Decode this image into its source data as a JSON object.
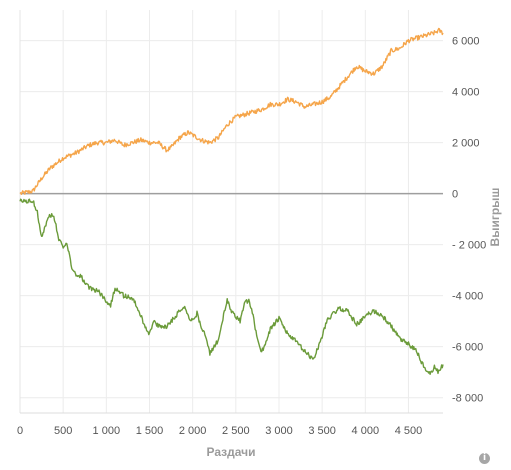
{
  "chart_data": {
    "type": "line",
    "xlabel": "Раздачи",
    "ylabel": "Выигрыш",
    "xlim": [
      0,
      4900
    ],
    "ylim": [
      -8600,
      7200
    ],
    "xticks": [
      0,
      500,
      1000,
      1500,
      2000,
      2500,
      3000,
      3500,
      4000,
      4500
    ],
    "xtick_labels": [
      "0",
      "500",
      "1 000",
      "1 500",
      "2 000",
      "2 500",
      "3 000",
      "3 500",
      "4 000",
      "4 500"
    ],
    "yticks": [
      6000,
      4000,
      2000,
      0,
      -2000,
      -4000,
      -6000,
      -8000
    ],
    "ytick_labels": [
      "6 000",
      "4 000",
      "2 000",
      "0",
      "- 2 000",
      "-4 000",
      "-6 000",
      "-8 000"
    ],
    "grid": true,
    "series": [
      {
        "color": "#f5a54a",
        "x": [
          0,
          150,
          250,
          350,
          500,
          650,
          800,
          900,
          1000,
          1100,
          1200,
          1300,
          1400,
          1500,
          1600,
          1700,
          1750,
          1850,
          1950,
          2000,
          2100,
          2200,
          2300,
          2400,
          2500,
          2600,
          2700,
          2800,
          2900,
          3000,
          3100,
          3200,
          3300,
          3400,
          3500,
          3600,
          3700,
          3800,
          3900,
          4000,
          4100,
          4200,
          4300,
          4400,
          4500,
          4600,
          4700,
          4800,
          4850,
          4900
        ],
        "values": [
          0,
          100,
          600,
          1000,
          1400,
          1600,
          1900,
          2000,
          2000,
          2100,
          1900,
          2000,
          2100,
          2000,
          2000,
          1700,
          1800,
          2200,
          2400,
          2300,
          2100,
          2000,
          2200,
          2700,
          3000,
          3100,
          3200,
          3300,
          3500,
          3500,
          3700,
          3600,
          3400,
          3500,
          3600,
          3800,
          4200,
          4600,
          5000,
          4800,
          4700,
          5000,
          5600,
          5700,
          6000,
          6100,
          6200,
          6300,
          6400,
          6300
        ]
      },
      {
        "color": "#6b9b3a",
        "x": [
          0,
          100,
          150,
          200,
          250,
          300,
          350,
          400,
          450,
          500,
          550,
          600,
          650,
          700,
          750,
          800,
          900,
          1000,
          1050,
          1100,
          1150,
          1200,
          1300,
          1350,
          1400,
          1450,
          1500,
          1550,
          1600,
          1700,
          1800,
          1900,
          1950,
          2000,
          2050,
          2100,
          2150,
          2200,
          2250,
          2300,
          2350,
          2400,
          2450,
          2500,
          2550,
          2600,
          2650,
          2700,
          2750,
          2800,
          2850,
          2900,
          2950,
          3000,
          3100,
          3200,
          3300,
          3400,
          3500,
          3550,
          3600,
          3700,
          3800,
          3850,
          3900,
          3950,
          4000,
          4100,
          4200,
          4300,
          4400,
          4500,
          4600,
          4650,
          4700,
          4750,
          4800,
          4850,
          4900
        ],
        "values": [
          -300,
          -300,
          -300,
          -700,
          -1700,
          -1200,
          -800,
          -1000,
          -1800,
          -2100,
          -2000,
          -2900,
          -3200,
          -3200,
          -3500,
          -3700,
          -3800,
          -4200,
          -4400,
          -3700,
          -3800,
          -4000,
          -4100,
          -4400,
          -4800,
          -5200,
          -5500,
          -5000,
          -5200,
          -5200,
          -4800,
          -4400,
          -4800,
          -5000,
          -4700,
          -5200,
          -5600,
          -6300,
          -6000,
          -5700,
          -4900,
          -4200,
          -4600,
          -4800,
          -5000,
          -4300,
          -4200,
          -4800,
          -5700,
          -6200,
          -5800,
          -5300,
          -5100,
          -4900,
          -5500,
          -5800,
          -6200,
          -6500,
          -5600,
          -5000,
          -4800,
          -4500,
          -4600,
          -4900,
          -5100,
          -5000,
          -4800,
          -4600,
          -4800,
          -5200,
          -5700,
          -5900,
          -6200,
          -6600,
          -6900,
          -7100,
          -6800,
          -7000,
          -6700
        ]
      }
    ]
  }
}
